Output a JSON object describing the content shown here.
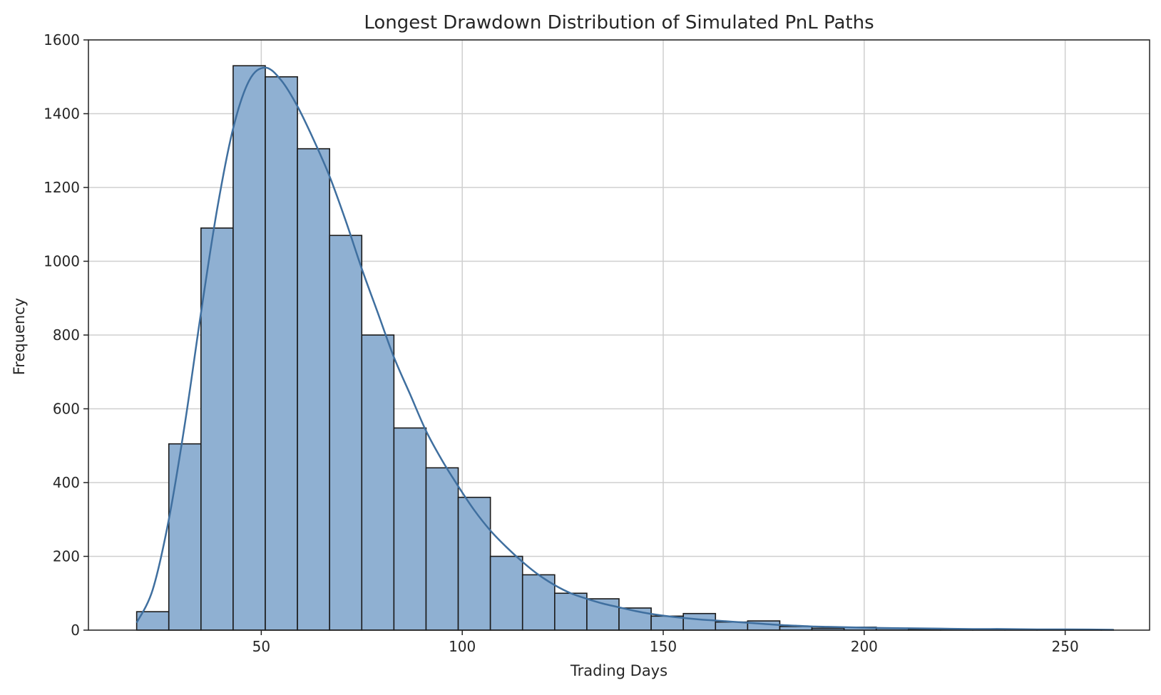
{
  "chart_data": {
    "type": "histogram",
    "title": "Longest Drawdown Distribution of Simulated PnL Paths",
    "xlabel": "Trading Days",
    "ylabel": "Frequency",
    "xlim": [
      7,
      271
    ],
    "ylim": [
      0,
      1600
    ],
    "xticks": [
      50,
      100,
      150,
      200,
      250
    ],
    "yticks": [
      0,
      200,
      400,
      600,
      800,
      1000,
      1200,
      1400,
      1600
    ],
    "grid": true,
    "bin_edges": [
      19,
      27,
      35,
      43,
      51,
      59,
      67,
      75,
      83,
      91,
      99,
      107,
      115,
      123,
      131,
      139,
      147,
      155,
      163,
      171,
      179,
      187,
      195,
      203,
      211,
      219,
      227,
      235,
      243,
      251,
      259,
      262
    ],
    "counts": [
      50,
      505,
      1090,
      1530,
      1500,
      1305,
      1070,
      800,
      548,
      440,
      360,
      200,
      150,
      100,
      85,
      60,
      38,
      45,
      22,
      25,
      10,
      5,
      8,
      5,
      3,
      3,
      2,
      2,
      1,
      1,
      1
    ],
    "kde": {
      "x": [
        19,
        23,
        27,
        31,
        35,
        39,
        43,
        47,
        51,
        55,
        59,
        63,
        67,
        71,
        75,
        79,
        83,
        87,
        91,
        95,
        99,
        103,
        107,
        111,
        115,
        119,
        123,
        127,
        131,
        135,
        139,
        143,
        147,
        151,
        155,
        159,
        163,
        167,
        171,
        175,
        179,
        183,
        187,
        191,
        195,
        199,
        203,
        211,
        219,
        227,
        235,
        243,
        251,
        262
      ],
      "y": [
        20,
        110,
        300,
        560,
        860,
        1140,
        1360,
        1490,
        1525,
        1490,
        1420,
        1330,
        1230,
        1110,
        980,
        860,
        740,
        640,
        540,
        460,
        390,
        325,
        270,
        225,
        185,
        150,
        122,
        100,
        85,
        72,
        62,
        52,
        44,
        38,
        33,
        29,
        26,
        23,
        20,
        17,
        14,
        12,
        10,
        9,
        8,
        7,
        6,
        5,
        4,
        3,
        3,
        2,
        2,
        1
      ]
    },
    "colors": {
      "bar_fill": "#8fb0d2",
      "bar_edge": "#1a1a1a",
      "kde_line": "#3f6f9f",
      "grid": "#cfcfcf"
    }
  }
}
